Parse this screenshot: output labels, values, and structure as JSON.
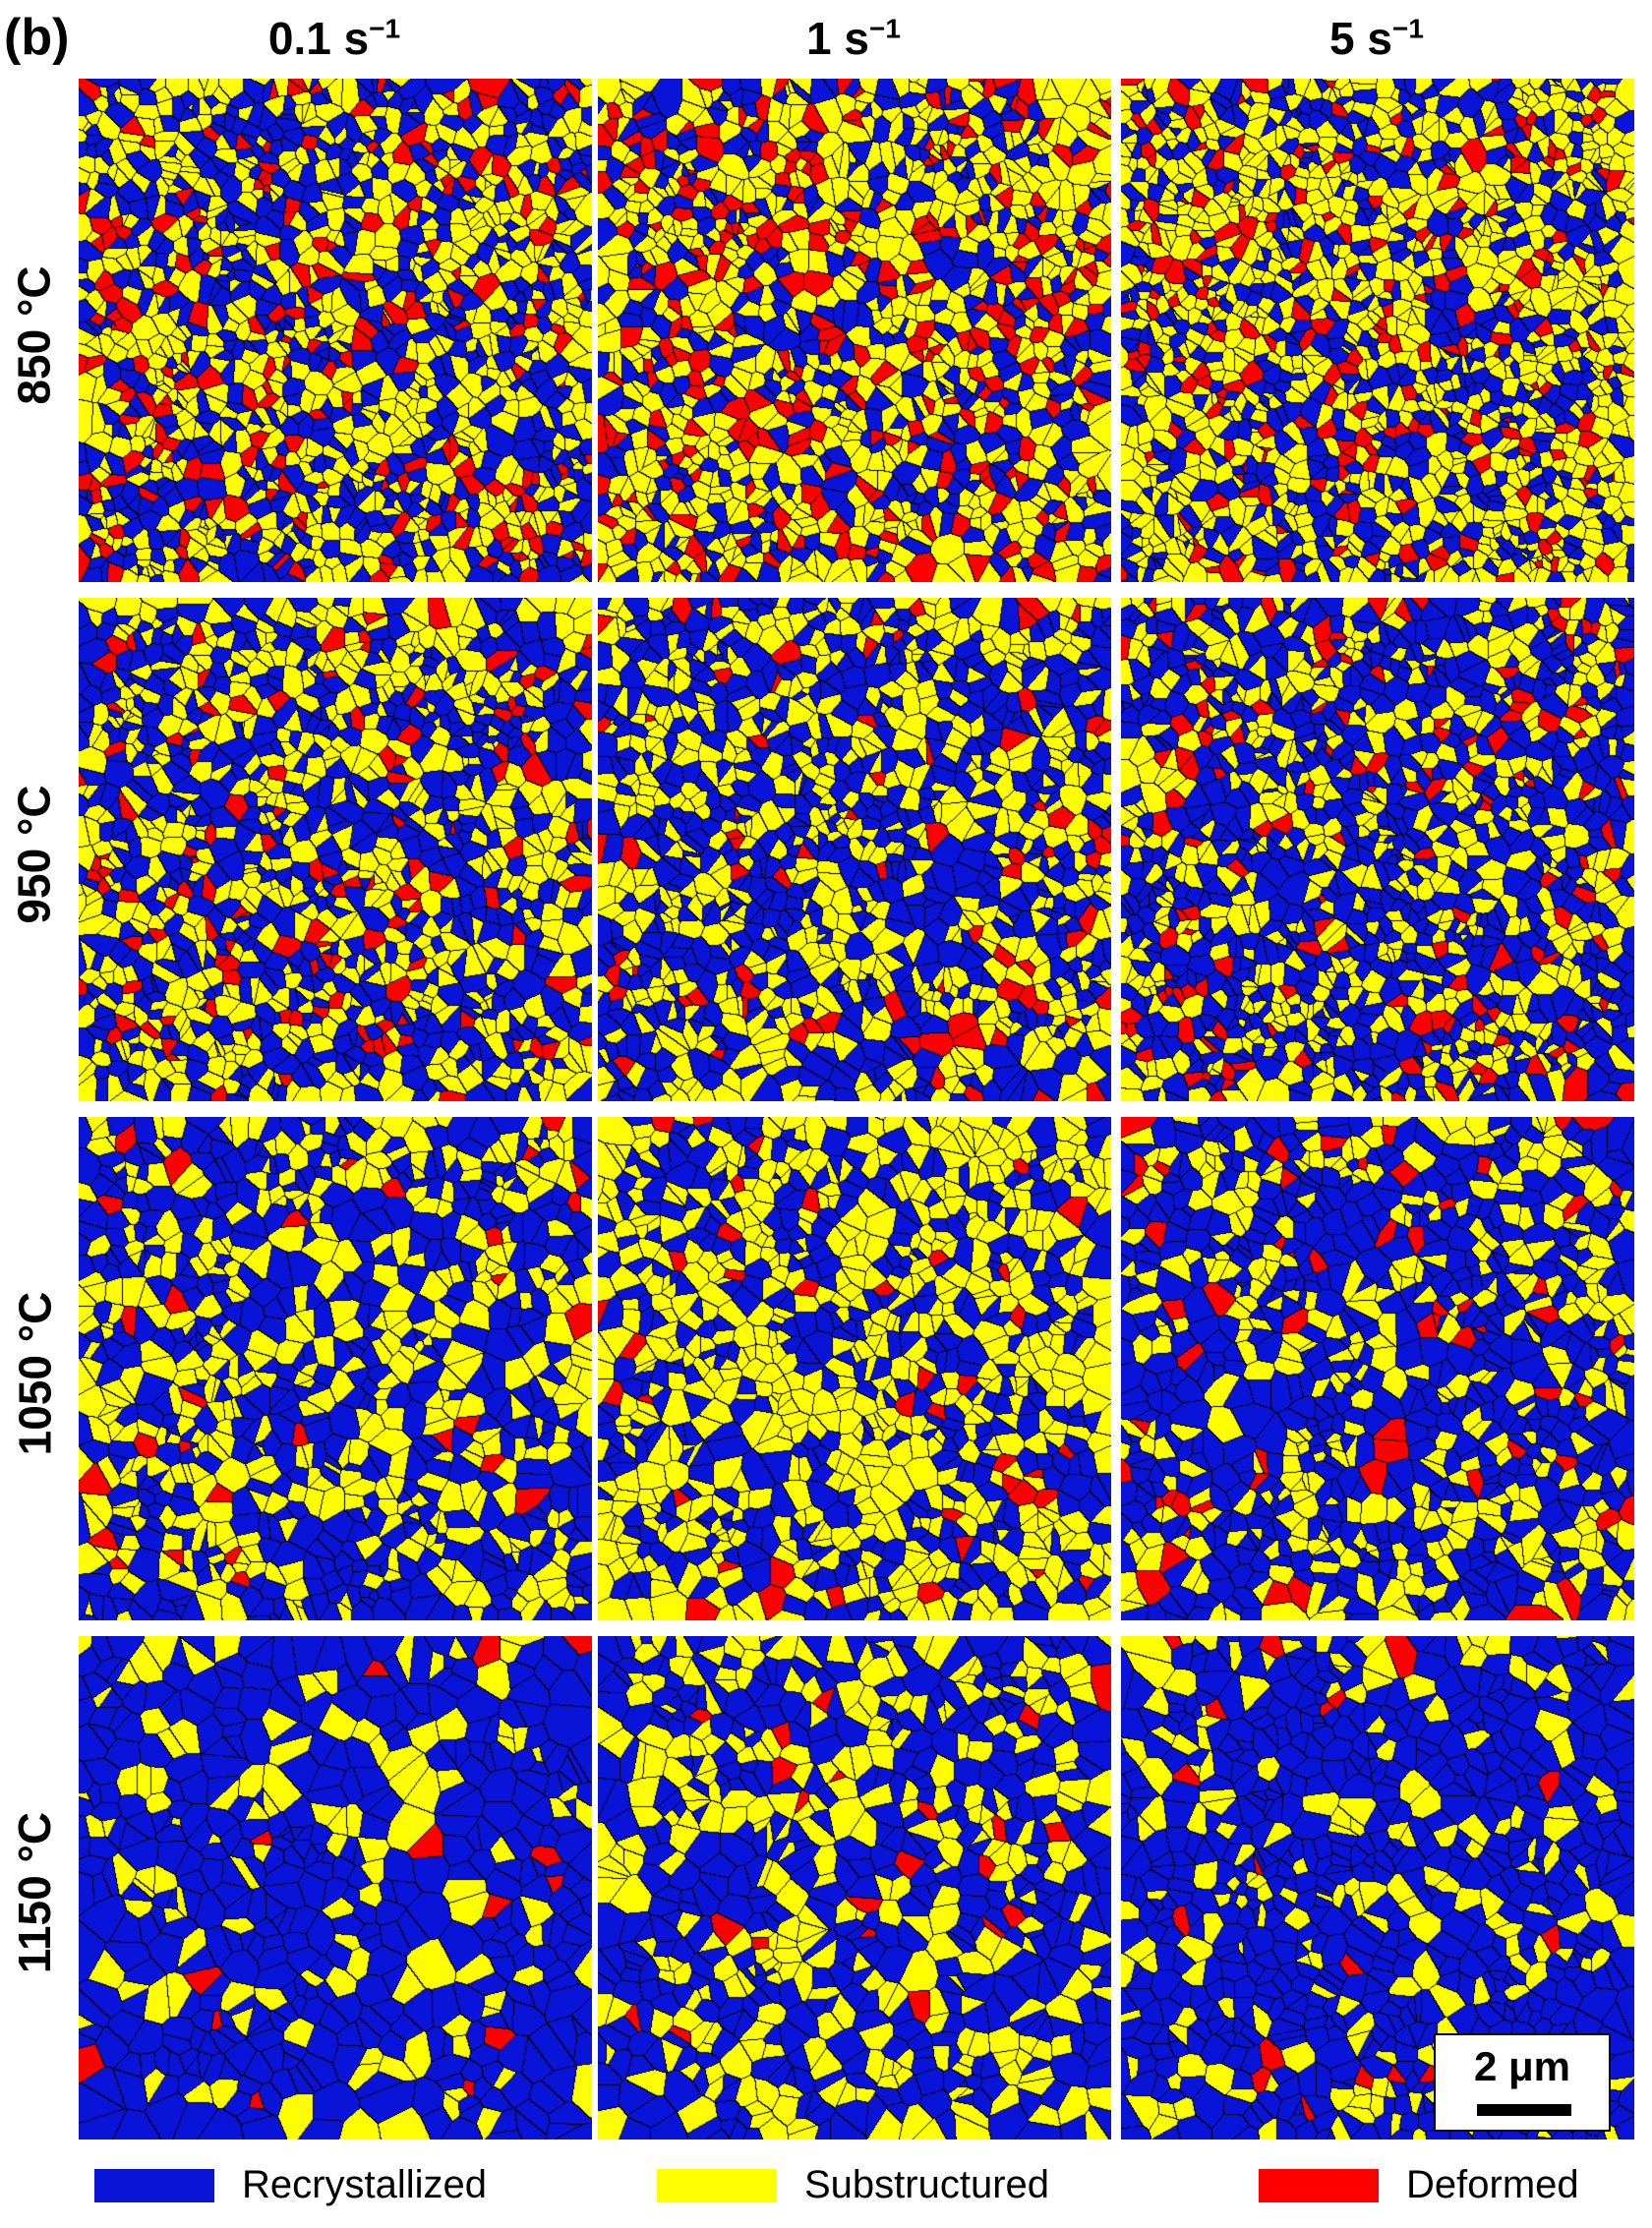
{
  "panel_label": "(b)",
  "columns": [
    {
      "base": "0.1 s",
      "exp": "−1"
    },
    {
      "base": "1 s",
      "exp": "−1"
    },
    {
      "base": "5 s",
      "exp": "−1"
    }
  ],
  "rows": [
    "850 °C",
    "950 °C",
    "1050 °C",
    "1150 °C"
  ],
  "colors": {
    "recrystallized": "#0a14d8",
    "substructured": "#ffff00",
    "deformed": "#ff0000",
    "grain_boundary": "#000000"
  },
  "phase_fractions": [
    [
      {
        "r": 0.42,
        "s": 0.45,
        "d": 0.13
      },
      {
        "r": 0.28,
        "s": 0.52,
        "d": 0.2
      },
      {
        "r": 0.33,
        "s": 0.55,
        "d": 0.12
      }
    ],
    [
      {
        "r": 0.45,
        "s": 0.46,
        "d": 0.09
      },
      {
        "r": 0.5,
        "s": 0.44,
        "d": 0.06
      },
      {
        "r": 0.55,
        "s": 0.36,
        "d": 0.09
      }
    ],
    [
      {
        "r": 0.52,
        "s": 0.44,
        "d": 0.04
      },
      {
        "r": 0.4,
        "s": 0.56,
        "d": 0.04
      },
      {
        "r": 0.62,
        "s": 0.33,
        "d": 0.05
      }
    ],
    [
      {
        "r": 0.74,
        "s": 0.23,
        "d": 0.03
      },
      {
        "r": 0.58,
        "s": 0.39,
        "d": 0.03
      },
      {
        "r": 0.74,
        "s": 0.23,
        "d": 0.03
      }
    ]
  ],
  "scale_bar": {
    "label": "2 μm"
  },
  "legend": [
    {
      "label": "Recrystallized",
      "color": "#0a14d8"
    },
    {
      "label": "Substructured",
      "color": "#ffff00"
    },
    {
      "label": "Deformed",
      "color": "#ff0000"
    }
  ]
}
